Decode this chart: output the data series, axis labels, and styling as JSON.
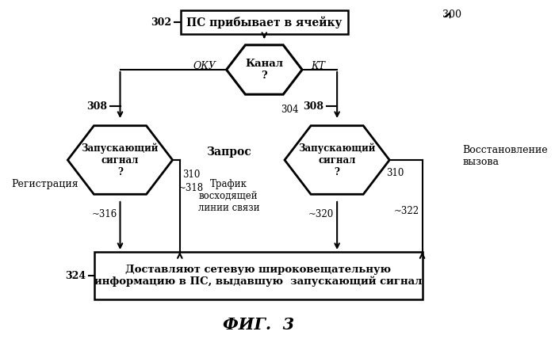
{
  "bg_color": "#ffffff",
  "title": "ФИГ.  3",
  "fig_label": "300",
  "node302_text": "ПС прибывает в ячейку",
  "node304_text": "Канал\n?",
  "node308L_text": "Запускающий\nсигнал\n?",
  "node308R_text": "Запускающий\nсигнал\n?",
  "node324_text": "Доставляют сетевую широковещательную\nинформацию в ПС, выдавшую  запускающий сигнал",
  "label_302": "302",
  "label_304": "304",
  "label_308L": "308",
  "label_308R": "308",
  "label_310L": "310",
  "label_310R": "310",
  "label_316": "316",
  "label_318": "318",
  "label_320": "320",
  "label_322": "322",
  "label_324": "324",
  "label_OKU": "ОКУ",
  "label_KT": "КТ",
  "text_zapros": "Запрос",
  "text_trafik": "Трафик\nвосходящей\nлинии связи",
  "text_registr": "Регистрация",
  "text_vosst": "Восстановление\nвызова",
  "line_color": "#000000",
  "box_fill": "#ffffff",
  "hex_fill": "#ffffff",
  "font_family": "DejaVu Serif"
}
